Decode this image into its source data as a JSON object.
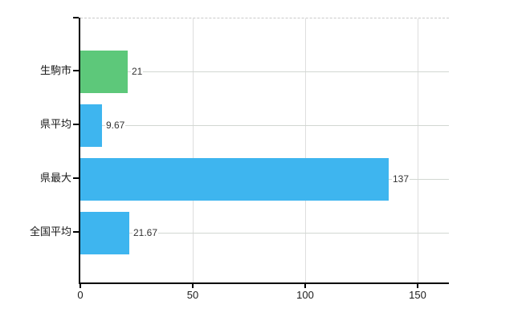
{
  "chart_data": {
    "type": "bar",
    "orientation": "horizontal",
    "title": "",
    "xlabel": "",
    "ylabel": "",
    "categories": [
      "生駒市",
      "県平均",
      "県最大",
      "全国平均"
    ],
    "values": [
      21,
      9.67,
      137,
      21.67
    ],
    "value_labels": [
      "21",
      "9.67",
      "137",
      "21.67"
    ],
    "bar_colors": [
      "#5dc87a",
      "#3eb5ef",
      "#3eb5ef",
      "#3eb5ef"
    ],
    "x_ticks": [
      "0",
      "50",
      "100",
      "150"
    ],
    "x_tick_values": [
      0,
      50,
      100,
      150
    ],
    "xlim": [
      0,
      164
    ],
    "grid": true,
    "legend": "none",
    "colors": {
      "green_bar": "#5dc87a",
      "blue_bar": "#3eb5ef",
      "axis": "#000000",
      "gridline": "#dedede",
      "category_gridline": "#d2d7d2",
      "text": "#1a1a1a",
      "background": "#ffffff"
    }
  }
}
